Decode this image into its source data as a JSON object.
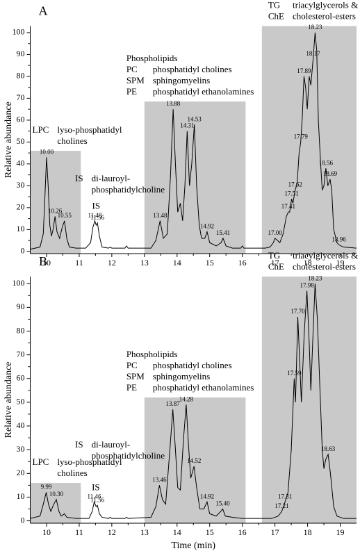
{
  "chart_data": [
    {
      "type": "line",
      "label": "A",
      "y_label": "Relative abundance",
      "color": "#000000",
      "xlim": [
        9.5,
        19.5
      ],
      "ylim": [
        -1,
        103
      ],
      "xticks": [
        10,
        11,
        12,
        13,
        14,
        15,
        16,
        17,
        18,
        19
      ],
      "yticks": [
        0,
        10,
        20,
        30,
        40,
        50,
        60,
        70,
        80,
        90,
        100
      ],
      "x": [
        9.5,
        9.8,
        9.9,
        9.95,
        10.0,
        10.05,
        10.1,
        10.15,
        10.2,
        10.26,
        10.32,
        10.4,
        10.48,
        10.55,
        10.62,
        10.7,
        10.9,
        11.2,
        11.35,
        11.42,
        11.48,
        11.52,
        11.56,
        11.62,
        11.7,
        11.9,
        11.95,
        12.0,
        12.4,
        12.45,
        12.5,
        13.2,
        13.35,
        13.48,
        13.58,
        13.7,
        13.8,
        13.88,
        13.95,
        14.02,
        14.1,
        14.17,
        14.24,
        14.31,
        14.38,
        14.45,
        14.53,
        14.6,
        14.68,
        14.75,
        14.85,
        14.92,
        15.0,
        15.2,
        15.35,
        15.41,
        15.5,
        15.7,
        15.95,
        16.0,
        16.05,
        16.7,
        16.85,
        16.95,
        17.0,
        17.08,
        17.15,
        17.25,
        17.35,
        17.41,
        17.45,
        17.51,
        17.55,
        17.62,
        17.68,
        17.74,
        17.79,
        17.84,
        17.89,
        17.94,
        17.99,
        18.05,
        18.1,
        18.17,
        18.23,
        18.28,
        18.33,
        18.4,
        18.45,
        18.5,
        18.56,
        18.62,
        18.69,
        18.74,
        18.8,
        18.9,
        18.96,
        19.1,
        19.5
      ],
      "values": [
        1,
        2,
        8,
        25,
        43,
        30,
        12,
        7,
        10,
        16,
        9,
        6,
        11,
        14,
        6,
        2,
        1.5,
        1.5,
        4,
        11,
        14,
        12,
        13,
        7,
        2,
        1.5,
        2,
        1.5,
        1.5,
        2.5,
        1.5,
        1.5,
        5,
        14,
        6,
        8,
        35,
        65,
        40,
        18,
        22,
        14,
        30,
        55,
        30,
        40,
        58,
        30,
        12,
        6,
        6,
        9,
        4,
        2.5,
        4,
        6,
        2.5,
        1.5,
        1.5,
        2.5,
        1.5,
        1.5,
        2,
        4,
        6,
        5,
        4,
        8,
        16,
        18,
        18,
        24,
        22,
        28,
        31,
        45,
        50,
        62,
        80,
        75,
        65,
        80,
        76,
        88,
        100,
        92,
        60,
        40,
        28,
        30,
        38,
        30,
        33,
        28,
        10,
        4,
        3,
        2,
        1.5
      ],
      "peak_labels": {
        "x": [
          10,
          10.26,
          10.55,
          11.48,
          11.56,
          13.48,
          13.88,
          14.31,
          14.53,
          14.92,
          15.41,
          17,
          17.41,
          17.51,
          17.62,
          17.79,
          17.89,
          18.17,
          18.23,
          18.56,
          18.69,
          18.96
        ],
        "labels": [
          "10.00",
          "10.26",
          "10.55",
          "11.48",
          "11.56",
          "13.48",
          "13.88",
          "14.31",
          "14.53",
          "14.92",
          "15.41",
          "17.00",
          "17.41",
          "17.51",
          "17.62",
          "17.79",
          "17.89",
          "18.17",
          "18.23",
          "18.56",
          "18.69",
          "18.96"
        ]
      },
      "is_label": "IS",
      "note": {
        "lines": [
          [
            "IS",
            "di-lauroyl-"
          ],
          [
            "phosphatidylcholine"
          ]
        ]
      },
      "regions": [
        {
          "x": [
            9.5,
            11.05
          ],
          "top": 46,
          "lines": [
            [
              "LPC",
              "lyso-phosphatidyl"
            ],
            [
              "cholines"
            ]
          ]
        },
        {
          "x": [
            13,
            16.1
          ],
          "top": 68.5,
          "title": "Phospholipids",
          "lines": [
            [
              "PC",
              "phosphatidyl cholines"
            ],
            [
              "SPM",
              "sphingomyelins"
            ],
            [
              "PE",
              "phosphatidyl ethanolamines"
            ]
          ]
        },
        {
          "x": [
            16.6,
            19.5
          ],
          "top": 103,
          "lines": [
            [
              "TG",
              "triacylglycerols &"
            ],
            [
              "ChE",
              "cholesterol-esters"
            ]
          ]
        }
      ]
    },
    {
      "type": "line",
      "label": "B",
      "y_label": "Relative abundance",
      "x_label": "Time (min)",
      "color": "#000000",
      "xlim": [
        9.5,
        19.5
      ],
      "ylim": [
        -1,
        103
      ],
      "xticks": [
        10,
        11,
        12,
        13,
        14,
        15,
        16,
        17,
        18,
        19
      ],
      "yticks": [
        0,
        10,
        20,
        30,
        40,
        50,
        60,
        70,
        80,
        90,
        100
      ],
      "x": [
        9.5,
        9.8,
        9.9,
        9.99,
        10.06,
        10.13,
        10.22,
        10.3,
        10.38,
        10.45,
        10.55,
        10.62,
        10.9,
        11.3,
        11.4,
        11.46,
        11.52,
        11.56,
        11.62,
        11.7,
        11.9,
        11.95,
        12.0,
        12.4,
        12.45,
        12.5,
        13.2,
        13.35,
        13.46,
        13.55,
        13.65,
        13.78,
        13.87,
        13.95,
        14.02,
        14.1,
        14.2,
        14.28,
        14.35,
        14.42,
        14.52,
        14.6,
        14.7,
        14.82,
        14.92,
        15.0,
        15.2,
        15.34,
        15.4,
        15.48,
        15.7,
        16.0,
        16.9,
        17.1,
        17.21,
        17.31,
        17.4,
        17.5,
        17.59,
        17.63,
        17.7,
        17.75,
        17.81,
        17.9,
        17.98,
        18.05,
        18.1,
        18.17,
        18.23,
        18.3,
        18.38,
        18.45,
        18.5,
        18.56,
        18.63,
        18.7,
        18.8,
        18.9,
        19.1,
        19.5
      ],
      "values": [
        1,
        2,
        7,
        12,
        7,
        4,
        7,
        9,
        4,
        2,
        3,
        1.5,
        1,
        1,
        4,
        8,
        6,
        6.5,
        3,
        1.5,
        1,
        1.5,
        1,
        1,
        1.5,
        1,
        1.5,
        6,
        15,
        9,
        7,
        30,
        47,
        30,
        14,
        13,
        35,
        49,
        32,
        18,
        23,
        14,
        5,
        5,
        8,
        3,
        2,
        4,
        5,
        2,
        1.5,
        1,
        1,
        2,
        4,
        8,
        12,
        30,
        60,
        50,
        86,
        70,
        50,
        80,
        97,
        75,
        55,
        80,
        100,
        85,
        55,
        30,
        22,
        26,
        28,
        20,
        6,
        2,
        1,
        1
      ],
      "peak_labels": {
        "x": [
          9.99,
          10.3,
          11.46,
          11.56,
          13.46,
          13.87,
          14.28,
          14.52,
          14.92,
          15.4,
          17.21,
          17.31,
          17.59,
          17.7,
          17.98,
          18.23,
          18.63
        ],
        "labels": [
          "9.99",
          "10.30",
          "11.46",
          "11.56",
          "13.46",
          "13.87",
          "14.28",
          "14.52",
          "14.92",
          "15.40",
          "17.21",
          "17.31",
          "17.59",
          "17.70",
          "17.98",
          "18.23",
          "18.63"
        ]
      },
      "is_label": "IS",
      "note": {
        "lines": [
          [
            "IS",
            "di-lauroyl-"
          ],
          [
            "phosphatidylcholine"
          ]
        ]
      },
      "regions": [
        {
          "x": [
            9.5,
            11.05
          ],
          "top": 16,
          "lines": [
            [
              "LPC",
              "lyso-phosphatidyl"
            ],
            [
              "cholines"
            ]
          ]
        },
        {
          "x": [
            13,
            16.1
          ],
          "top": 52,
          "title": "Phospholipids",
          "lines": [
            [
              "PC",
              "phosphatidyl cholines"
            ],
            [
              "SPM",
              "sphingomyelins"
            ],
            [
              "PE",
              "phosphatidyl ethanolamines"
            ]
          ]
        },
        {
          "x": [
            16.6,
            19.5
          ],
          "top": 103,
          "lines": [
            [
              "TG",
              "triacylglycerols &"
            ],
            [
              "ChE",
              "cholesterol-esters"
            ]
          ]
        }
      ]
    }
  ]
}
